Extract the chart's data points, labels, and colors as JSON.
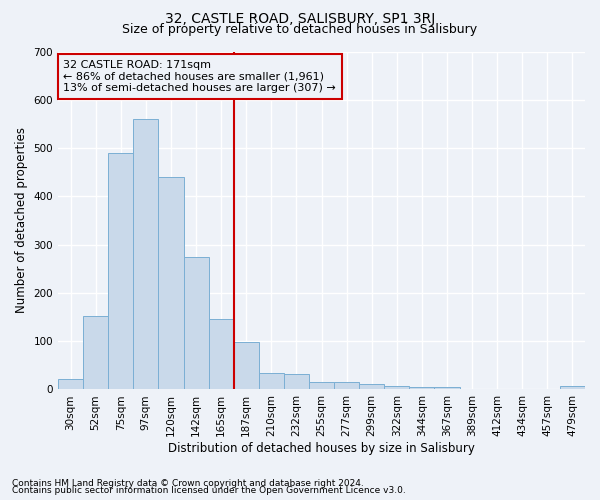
{
  "title": "32, CASTLE ROAD, SALISBURY, SP1 3RJ",
  "subtitle": "Size of property relative to detached houses in Salisbury",
  "xlabel": "Distribution of detached houses by size in Salisbury",
  "ylabel": "Number of detached properties",
  "footer_line1": "Contains HM Land Registry data © Crown copyright and database right 2024.",
  "footer_line2": "Contains public sector information licensed under the Open Government Licence v3.0.",
  "bar_labels": [
    "30sqm",
    "52sqm",
    "75sqm",
    "97sqm",
    "120sqm",
    "142sqm",
    "165sqm",
    "187sqm",
    "210sqm",
    "232sqm",
    "255sqm",
    "277sqm",
    "299sqm",
    "322sqm",
    "344sqm",
    "367sqm",
    "389sqm",
    "412sqm",
    "434sqm",
    "457sqm",
    "479sqm"
  ],
  "bar_values": [
    22,
    152,
    490,
    560,
    440,
    275,
    145,
    98,
    35,
    33,
    15,
    16,
    12,
    7,
    5,
    5,
    0,
    0,
    0,
    0,
    7
  ],
  "bar_color": "#c9d9ea",
  "bar_edge_color": "#7bafd4",
  "vline_x": 6.5,
  "vline_color": "#cc0000",
  "annotation_text": "32 CASTLE ROAD: 171sqm\n← 86% of detached houses are smaller (1,961)\n13% of semi-detached houses are larger (307) →",
  "annotation_box_color": "#cc0000",
  "ylim": [
    0,
    700
  ],
  "yticks": [
    0,
    100,
    200,
    300,
    400,
    500,
    600,
    700
  ],
  "background_color": "#eef2f8",
  "grid_color": "#ffffff",
  "title_fontsize": 10,
  "subtitle_fontsize": 9,
  "tick_fontsize": 7.5,
  "ylabel_fontsize": 8.5,
  "xlabel_fontsize": 8.5,
  "annot_fontsize": 8
}
